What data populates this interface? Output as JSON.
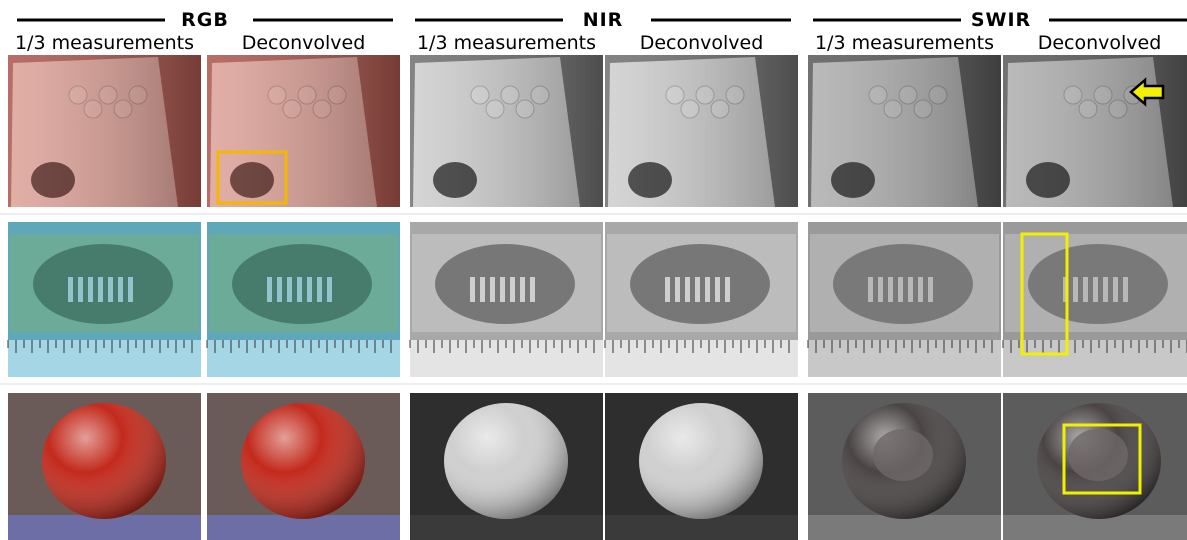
{
  "groups": [
    {
      "title": "RGB",
      "columns": [
        "1/3 measurements",
        "Deconvolved"
      ]
    },
    {
      "title": "NIR",
      "columns": [
        "1/3 measurements",
        "Deconvolved"
      ]
    },
    {
      "title": "SWIR",
      "columns": [
        "1/3 measurements",
        "Deconvolved"
      ]
    }
  ]
}
